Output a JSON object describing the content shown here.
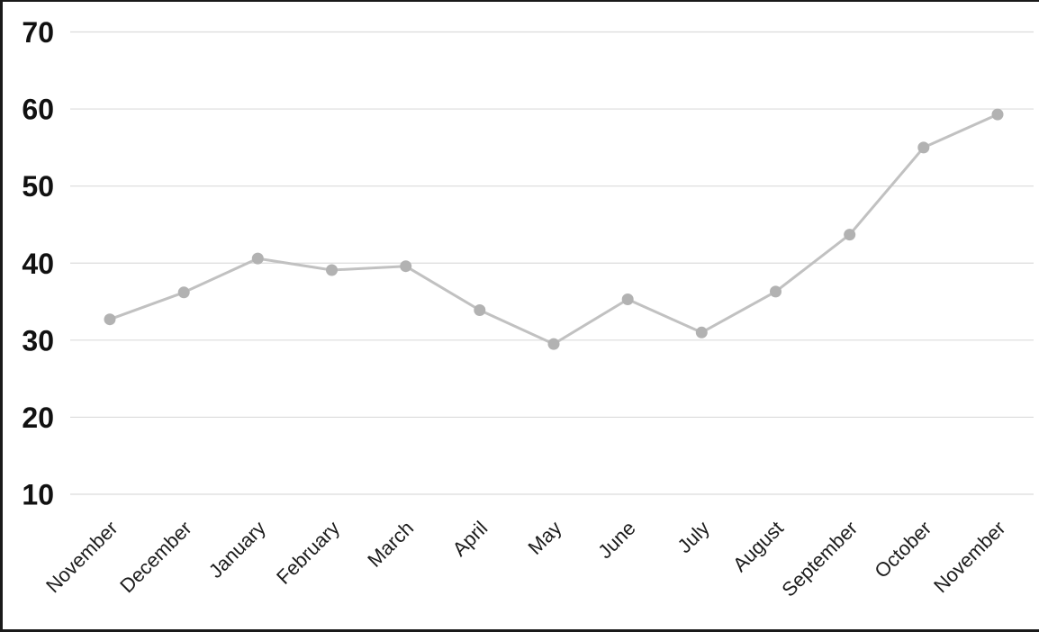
{
  "chart_data": {
    "type": "line",
    "title": "",
    "xlabel": "",
    "ylabel": "",
    "categories": [
      "November",
      "December",
      "January",
      "February",
      "March",
      "April",
      "May",
      "June",
      "July",
      "August",
      "September",
      "October",
      "November"
    ],
    "values": [
      32.7,
      36.2,
      40.6,
      39.1,
      39.6,
      33.9,
      29.5,
      35.3,
      31.0,
      36.3,
      43.7,
      55.0,
      59.3
    ],
    "ylim": [
      10,
      70
    ],
    "yticks": [
      10,
      20,
      30,
      40,
      50,
      60,
      70
    ],
    "grid": true,
    "legend": false,
    "x_label_rotation_deg": -45,
    "colors": {
      "line": "#c1c1c1",
      "marker": "#b2b2b2",
      "gridline": "#dcdcdc",
      "ytick_text": "#111111",
      "xtick_text": "#1c1c1c",
      "frame_border": "#1a1a1a",
      "background": "#ffffff"
    }
  }
}
